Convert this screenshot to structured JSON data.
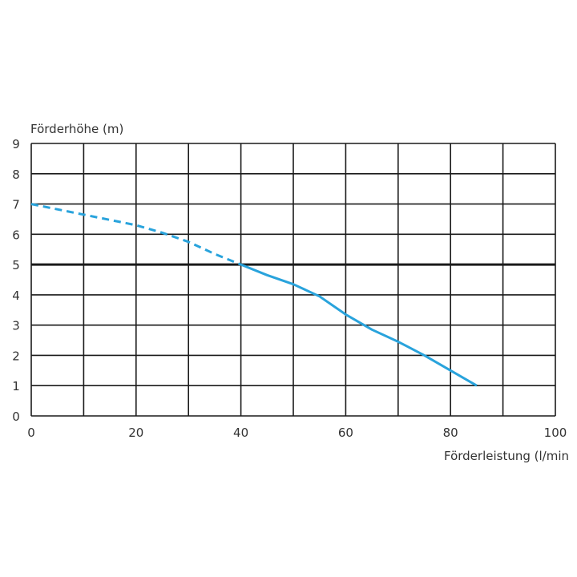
{
  "chart_data": {
    "type": "line",
    "title": "",
    "xlabel": "Förderleistung (l/min",
    "ylabel": "Förderhöhe (m)",
    "xlim": [
      0,
      100
    ],
    "ylim": [
      0,
      9
    ],
    "x_ticks": [
      "0",
      "20",
      "40",
      "60",
      "80",
      "100"
    ],
    "y_ticks": [
      "0",
      "1",
      "2",
      "3",
      "4",
      "5",
      "6",
      "7",
      "8",
      "9"
    ],
    "grid": true,
    "highlight_gridline_y": 5,
    "series": [
      {
        "style": "dashed",
        "color": "#29a3dc",
        "x": [
          0,
          10,
          20,
          25,
          30,
          35,
          40
        ],
        "y": [
          7.0,
          6.65,
          6.3,
          6.05,
          5.75,
          5.35,
          5.0
        ]
      },
      {
        "style": "solid",
        "color": "#29a3dc",
        "x": [
          40,
          45,
          50,
          55,
          60,
          65,
          70,
          75,
          80,
          85
        ],
        "y": [
          5.0,
          4.65,
          4.35,
          3.95,
          3.35,
          2.85,
          2.45,
          2.0,
          1.5,
          1.0
        ]
      }
    ]
  }
}
